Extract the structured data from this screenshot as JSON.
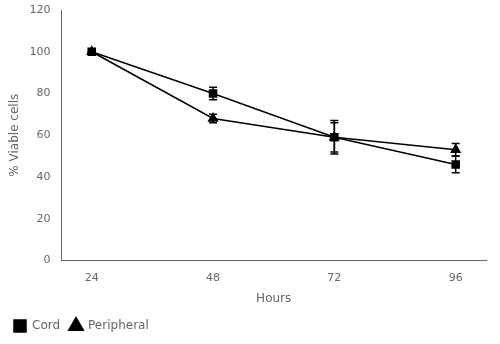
{
  "chart_data": {
    "type": "line",
    "x": [
      24,
      48,
      72,
      96
    ],
    "xlabel": "Hours",
    "ylabel": "% Viable cells",
    "xlim": [
      18,
      102
    ],
    "xticks": [
      24,
      48,
      72,
      96
    ],
    "ylim": [
      0,
      120
    ],
    "yticks": [
      0,
      20,
      40,
      60,
      80,
      100,
      120
    ],
    "grid": false,
    "legend": "lower left",
    "series": [
      {
        "name": "Cord",
        "color": "#000000",
        "marker": "square",
        "values": [
          100,
          80,
          59,
          46
        ],
        "errors": [
          0,
          3,
          7,
          4
        ]
      },
      {
        "name": "Peripheral",
        "color": "#000000",
        "marker": "triangle",
        "values": [
          100,
          68,
          59,
          53
        ],
        "errors": [
          0,
          2,
          8,
          3
        ]
      }
    ]
  }
}
